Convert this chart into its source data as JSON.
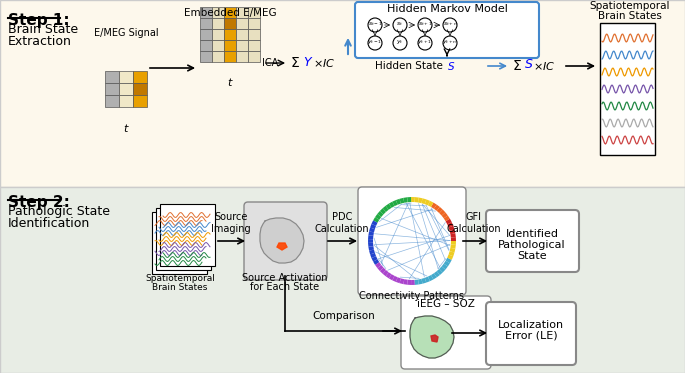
{
  "bg_top": "#fdf8ec",
  "bg_bottom": "#e8ede5",
  "step1_title": "Step 1:",
  "step1_sub1": "Brain State",
  "step1_sub2": "Extraction",
  "step2_title": "Step 2:",
  "step2_sub1": "Pathologic State",
  "step2_sub2": "Identification",
  "emeg_label": "E/MEG Signal",
  "embedded_label": "Embedded E/MEG",
  "hmm_label": "Hidden Markov Model",
  "hidden_state_label": "Hidden State ",
  "spatiotemporal_label1": "Spatiotemporal",
  "spatiotemporal_label2": "Brain States",
  "ica_label": "ICA",
  "source_imaging_label": "Source\nImaging",
  "pdc_label": "PDC\nCalculation",
  "gfi_label": "GFI\nCalculation",
  "identified_label1": "Identified",
  "identified_label2": "Pathological",
  "identified_label3": "State",
  "source_activation_label1": "Source Activation",
  "source_activation_label2": "for Each State",
  "connectivity_label": "Connectivity Patterns",
  "comparison_label": "Comparison",
  "ieeg_soz_label": "iEEG – SOZ",
  "localization_label1": "Localization",
  "localization_label2": "Error (LE)",
  "orange": "#e8a000",
  "dark_orange": "#c07800",
  "blue_arrow": "#4488cc",
  "box_border": "#888888",
  "wave_colors": [
    "#e07030",
    "#4488cc",
    "#ee9900",
    "#7755aa",
    "#228844",
    "#aaaaaa",
    "#cc4444"
  ]
}
